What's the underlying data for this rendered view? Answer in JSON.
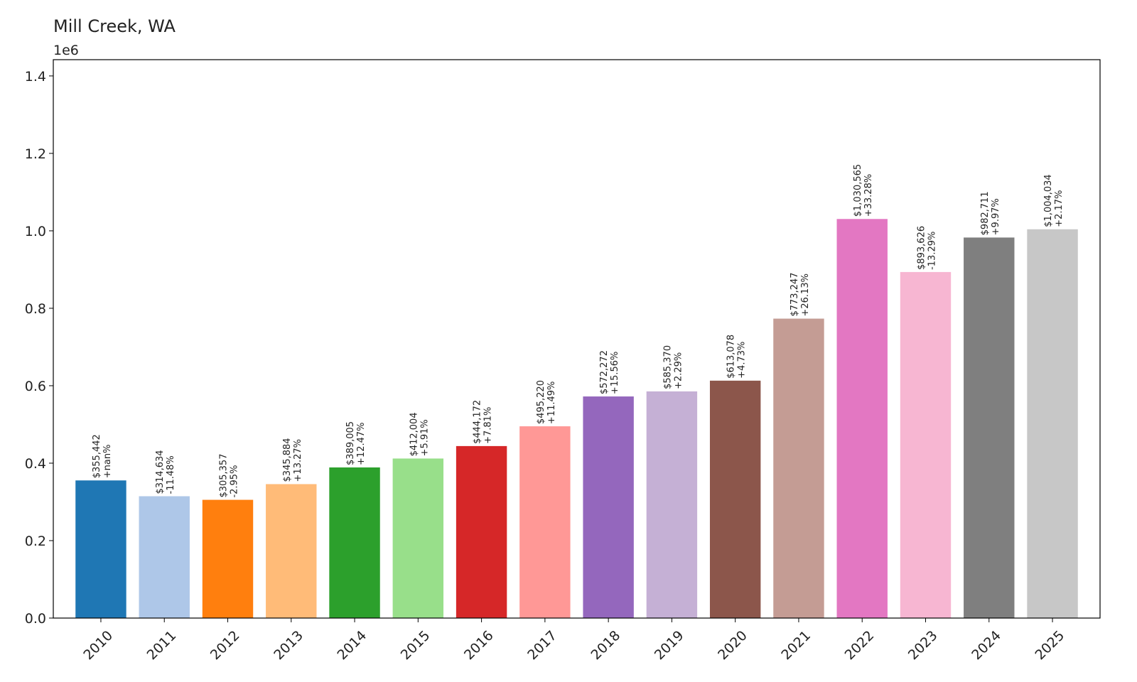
{
  "chart_data": {
    "type": "bar",
    "title": "Mill Creek, WA",
    "y_offset_label": "1e6",
    "xlabel": "",
    "ylabel": "",
    "ylim": [
      0,
      1.442
    ],
    "yticks": [
      0.0,
      0.2,
      0.4,
      0.6,
      0.8,
      1.0,
      1.2,
      1.4
    ],
    "ytick_labels": [
      "0.0",
      "0.2",
      "0.4",
      "0.6",
      "0.8",
      "1.0",
      "1.2",
      "1.4"
    ],
    "grid": false,
    "categories": [
      "2010",
      "2011",
      "2012",
      "2013",
      "2014",
      "2015",
      "2016",
      "2017",
      "2018",
      "2019",
      "2020",
      "2021",
      "2022",
      "2023",
      "2024",
      "2025"
    ],
    "values": [
      355442,
      314634,
      305357,
      345884,
      389005,
      412004,
      444172,
      495220,
      572272,
      585370,
      613078,
      773247,
      1030565,
      893626,
      982711,
      1004034
    ],
    "value_labels": [
      "$355,442",
      "$314,634",
      "$305,357",
      "$345,884",
      "$389,005",
      "$412,004",
      "$444,172",
      "$495,220",
      "$572,272",
      "$585,370",
      "$613,078",
      "$773,247",
      "$1,030,565",
      "$893,626",
      "$982,711",
      "$1,004,034"
    ],
    "change_labels": [
      "+nan%",
      "-11.48%",
      "-2.95%",
      "+13.27%",
      "+12.47%",
      "+5.91%",
      "+7.81%",
      "+11.49%",
      "+15.56%",
      "+2.29%",
      "+4.73%",
      "+26.13%",
      "+33.28%",
      "-13.29%",
      "+9.97%",
      "+2.17%"
    ],
    "colors": [
      "#1f77b4",
      "#aec7e8",
      "#ff7f0e",
      "#ffbb78",
      "#2ca02c",
      "#98df8a",
      "#d62728",
      "#ff9896",
      "#9467bd",
      "#c5b0d5",
      "#8c564b",
      "#c49c94",
      "#e377c2",
      "#f7b6d2",
      "#7f7f7f",
      "#c7c7c7"
    ]
  }
}
